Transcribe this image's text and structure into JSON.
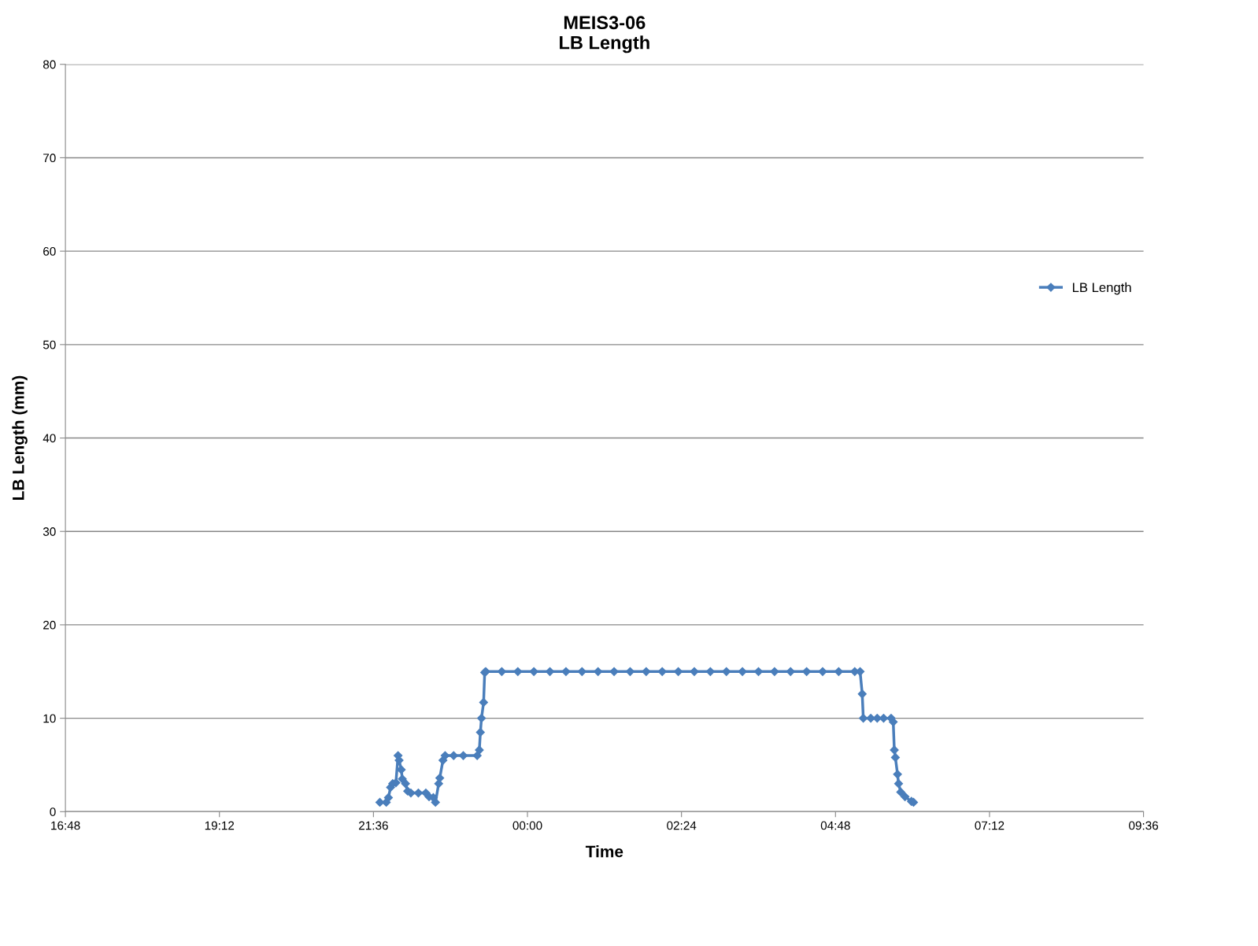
{
  "chart_data": {
    "type": "line",
    "title": "MEIS3-06\nLB Length",
    "xlabel": "Time",
    "ylabel": "LB Length (mm)",
    "xlim": [
      "2000-01-01T16:48",
      "2000-01-02T09:36"
    ],
    "xticks": [
      {
        "value": "2000-01-01T16:48",
        "label": "16:48"
      },
      {
        "value": "2000-01-01T19:12",
        "label": "19:12"
      },
      {
        "value": "2000-01-01T21:36",
        "label": "21:36"
      },
      {
        "value": "2000-01-02T00:00",
        "label": "00:00"
      },
      {
        "value": "2000-01-02T02:24",
        "label": "02:24"
      },
      {
        "value": "2000-01-02T04:48",
        "label": "04:48"
      },
      {
        "value": "2000-01-02T07:12",
        "label": "07:12"
      },
      {
        "value": "2000-01-02T09:36",
        "label": "09:36"
      }
    ],
    "ylim": [
      0,
      80
    ],
    "yticks": [
      0,
      10,
      20,
      30,
      40,
      50,
      60,
      70,
      80
    ],
    "grid": "y",
    "legend": "right",
    "marker": "diamond",
    "line_style": "solid",
    "series": [
      {
        "name": "LB Length",
        "color": "#4a7ebb",
        "x": [
          "2000-01-01T21:42",
          "2000-01-01T21:48",
          "2000-01-01T21:50",
          "2000-01-01T21:52",
          "2000-01-01T21:54",
          "2000-01-01T21:57",
          "2000-01-01T21:59",
          "2000-01-01T22:00",
          "2000-01-01T22:02",
          "2000-01-01T22:03",
          "2000-01-01T22:06",
          "2000-01-01T22:08",
          "2000-01-01T22:11",
          "2000-01-01T22:18",
          "2000-01-01T22:25",
          "2000-01-01T22:28",
          "2000-01-01T22:32",
          "2000-01-01T22:34",
          "2000-01-01T22:37",
          "2000-01-01T22:38",
          "2000-01-01T22:41",
          "2000-01-01T22:43",
          "2000-01-01T22:51",
          "2000-01-01T23:00",
          "2000-01-01T23:13",
          "2000-01-01T23:15",
          "2000-01-01T23:16",
          "2000-01-01T23:17",
          "2000-01-01T23:19",
          "2000-01-01T23:20",
          "2000-01-01T23:21",
          "2000-01-01T23:36",
          "2000-01-01T23:51",
          "2000-01-02T00:06",
          "2000-01-02T00:21",
          "2000-01-02T00:36",
          "2000-01-02T00:51",
          "2000-01-02T01:06",
          "2000-01-02T01:21",
          "2000-01-02T01:36",
          "2000-01-02T01:51",
          "2000-01-02T02:06",
          "2000-01-02T02:21",
          "2000-01-02T02:36",
          "2000-01-02T02:51",
          "2000-01-02T03:06",
          "2000-01-02T03:21",
          "2000-01-02T03:36",
          "2000-01-02T03:51",
          "2000-01-02T04:06",
          "2000-01-02T04:21",
          "2000-01-02T04:36",
          "2000-01-02T04:51",
          "2000-01-02T05:06",
          "2000-01-02T05:11",
          "2000-01-02T05:13",
          "2000-01-02T05:14",
          "2000-01-02T05:21",
          "2000-01-02T05:27",
          "2000-01-02T05:33",
          "2000-01-02T05:40",
          "2000-01-02T05:42",
          "2000-01-02T05:43",
          "2000-01-02T05:44",
          "2000-01-02T05:46",
          "2000-01-02T05:47",
          "2000-01-02T05:49",
          "2000-01-02T05:53",
          "2000-01-02T05:59",
          "2000-01-02T06:01"
        ],
        "values": [
          1.0,
          1.0,
          1.5,
          2.6,
          3.0,
          3.1,
          6.0,
          5.5,
          4.5,
          3.5,
          3.0,
          2.2,
          2.0,
          2.0,
          2.0,
          1.6,
          1.5,
          1.0,
          3.0,
          3.6,
          5.5,
          6.0,
          6.0,
          6.0,
          6.0,
          6.6,
          8.5,
          10.0,
          11.7,
          14.9,
          15.0,
          15,
          15,
          15,
          15,
          15,
          15,
          15,
          15,
          15,
          15,
          15,
          15,
          15,
          15,
          15,
          15,
          15,
          15,
          15,
          15,
          15,
          15,
          15,
          15.0,
          12.6,
          10.0,
          10.0,
          10.0,
          10.0,
          10.0,
          9.6,
          6.6,
          5.8,
          4.0,
          3.0,
          2.1,
          1.6,
          1.1,
          1.0
        ]
      }
    ]
  }
}
